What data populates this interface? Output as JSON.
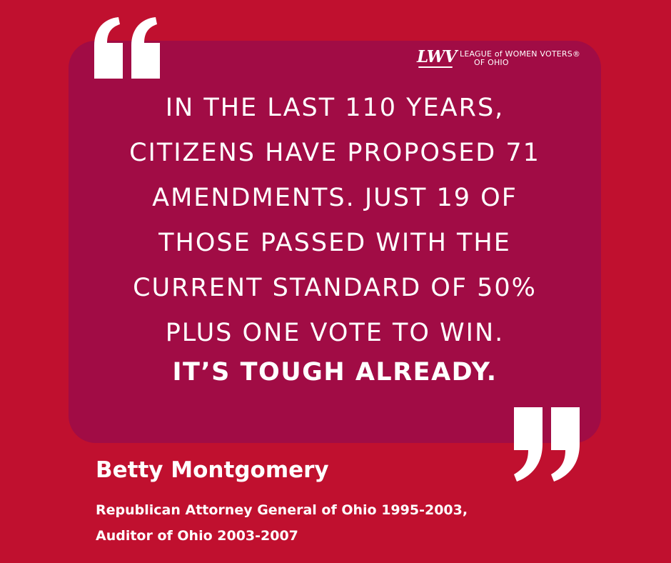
{
  "logo": {
    "mark": "LWV",
    "text_line1": "LEAGUE of WOMEN VOTERS®",
    "text_line2": "OF OHIO"
  },
  "quote": {
    "lines": [
      "IN THE LAST 110 YEARS,",
      "CITIZENS HAVE PROPOSED 71",
      "AMENDMENTS. JUST 19 OF",
      "THOSE PASSED WITH THE",
      "CURRENT STANDARD OF 50%",
      "PLUS ONE VOTE TO WIN."
    ],
    "emphasis": "IT’S TOUGH ALREADY."
  },
  "attribution": {
    "name": "Betty Montgomery",
    "title_line1": "Republican Attorney General of Ohio 1995-2003,",
    "title_line2": "Auditor of Ohio 2003-2007"
  },
  "colors": {
    "background": "#c0102f",
    "panel": "#a10c45",
    "text": "#ffffff"
  }
}
